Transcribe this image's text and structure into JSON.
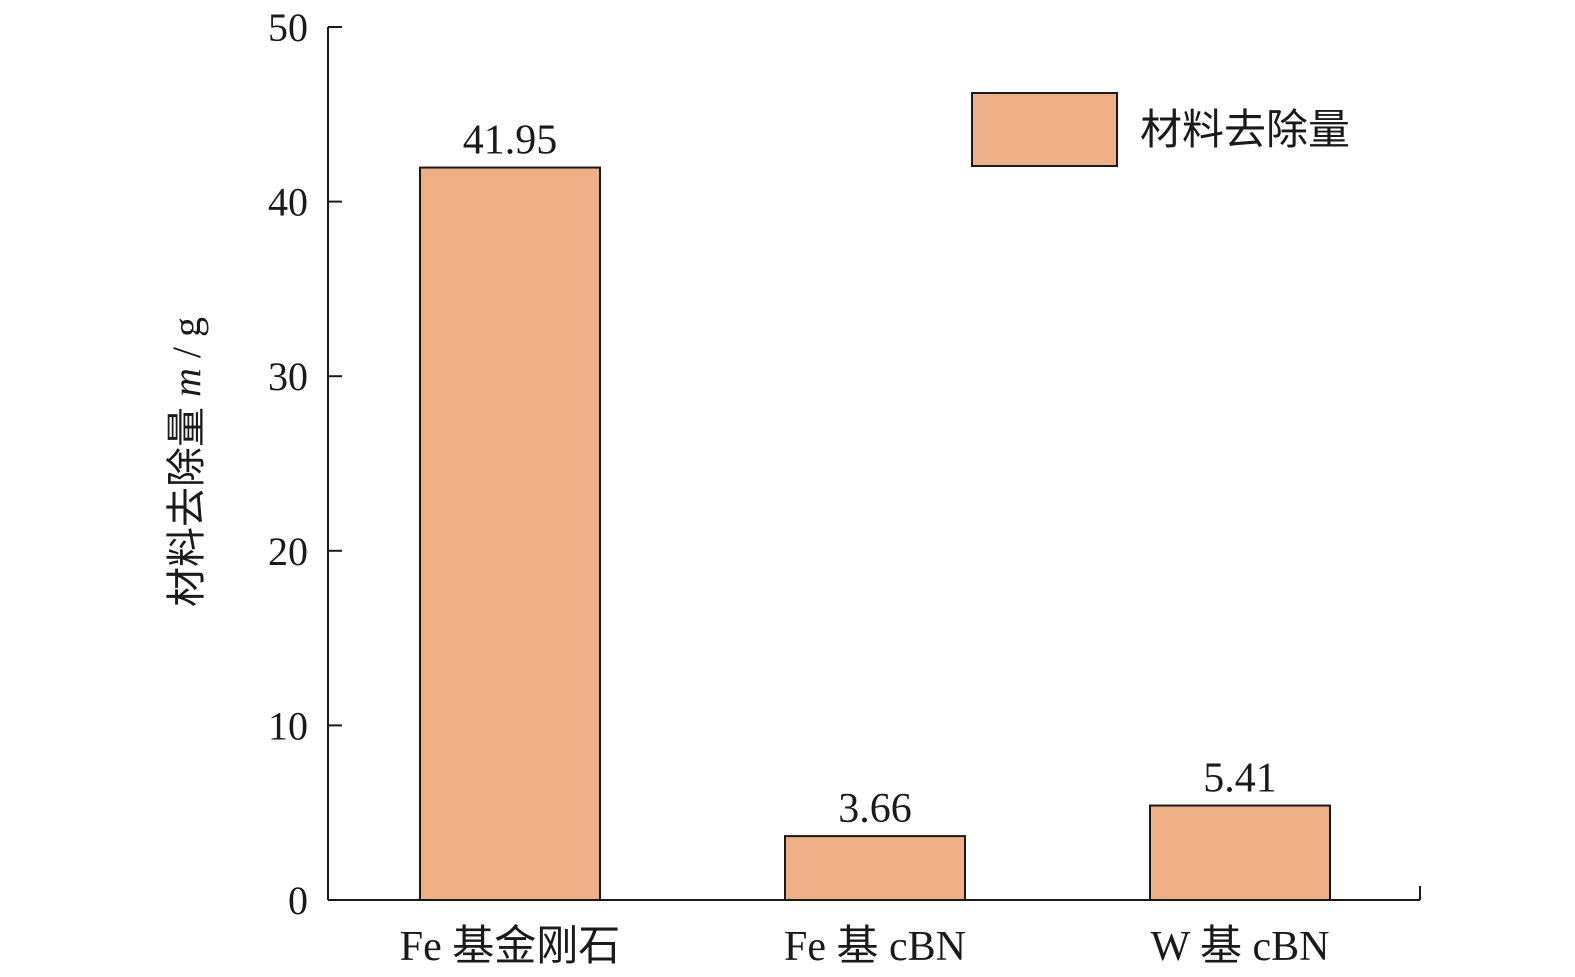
{
  "chart_data": {
    "type": "bar",
    "categories": [
      "Fe 基金刚石",
      "Fe 基 cBN",
      "W 基 cBN"
    ],
    "series": [
      {
        "name": "材料去除量",
        "values": [
          41.95,
          3.66,
          5.41
        ],
        "color": "#EFAF86"
      }
    ],
    "data_labels": [
      "41.95",
      "3.66",
      "5.41"
    ],
    "ylabel": "材料去除量 m / g",
    "ylim": [
      0,
      50
    ],
    "yticks": [
      0,
      10,
      20,
      30,
      40,
      50
    ],
    "legend_position": "top-right",
    "grid": false
  }
}
